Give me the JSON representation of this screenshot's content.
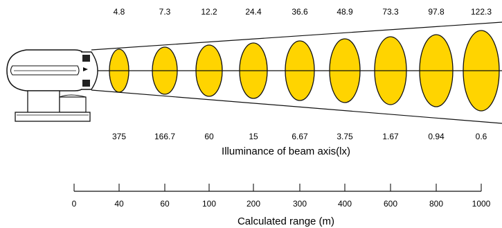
{
  "diagram": {
    "top_label_fragment_left": "(",
    "top_label_fragment_right": ") (",
    "beam_diameters": [
      "4.8",
      "7.3",
      "12.2",
      "24.4",
      "36.6",
      "48.9",
      "73.3",
      "97.8",
      "122.3"
    ],
    "illuminance_values": [
      "375",
      "166.7",
      "60",
      "15",
      "6.67",
      "3.75",
      "1.67",
      "0.94",
      "0.6"
    ],
    "illuminance_title": "Illuminance of beam axis(lx)",
    "ranges": [
      "0",
      "40",
      "60",
      "100",
      "200",
      "300",
      "400",
      "600",
      "800",
      "1000"
    ],
    "range_title": "Calculated range (m)",
    "colors": {
      "beam_fill": "#ffd400",
      "line": "#111111",
      "lamp_fill": "#ffffff",
      "background": "#ffffff"
    },
    "icons": {
      "lamp": "searchlight-icon"
    }
  }
}
